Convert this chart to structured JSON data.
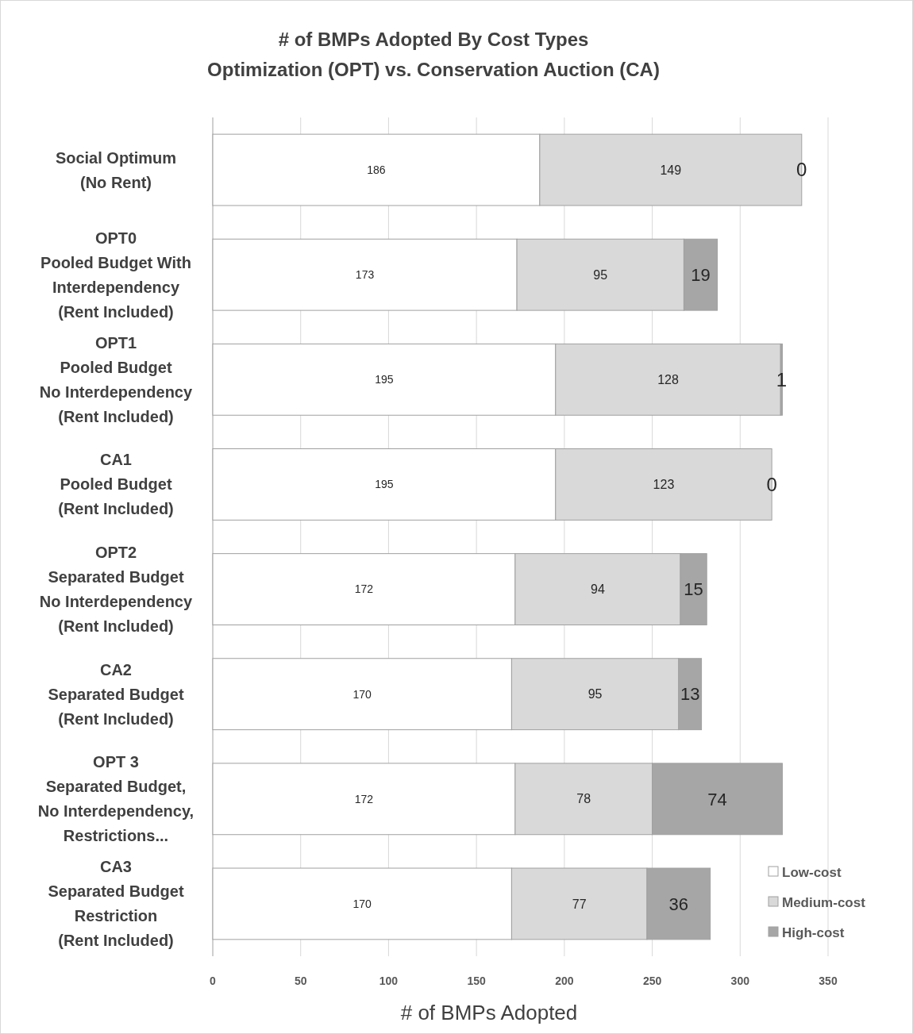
{
  "chart_data": {
    "type": "bar",
    "orientation": "horizontal",
    "stacked": true,
    "title": "# of BMPs Adopted By Cost Types\nOptimization (OPT) vs. Conservation Auction (CA)",
    "xlabel": "# of BMPs Adopted",
    "categories": [
      "Social Optimum\n(No Rent)",
      "OPT0\nPooled Budget With\nInterdependency\n(Rent Included)",
      "OPT1\nPooled Budget\nNo Interdependency\n(Rent Included)",
      "CA1\nPooled Budget\n(Rent Included)",
      "OPT2\nSeparated Budget\nNo Interdependency\n(Rent Included)",
      "CA2\nSeparated Budget\n(Rent Included)",
      "OPT 3\nSeparated Budget,\nNo Interdependency,\nRestrictions...",
      "CA3\nSeparated Budget\nRestriction\n(Rent Included)"
    ],
    "series": [
      {
        "name": "Low-cost",
        "color": "#ffffff",
        "values": [
          186,
          173,
          195,
          195,
          172,
          170,
          172,
          170
        ]
      },
      {
        "name": "Medium-cost",
        "color": "#d9d9d9",
        "values": [
          149,
          95,
          128,
          123,
          94,
          95,
          78,
          77
        ]
      },
      {
        "name": "High-cost",
        "color": "#a6a6a6",
        "values": [
          0,
          19,
          1,
          0,
          15,
          13,
          74,
          36
        ]
      }
    ],
    "xlim": [
      0,
      350
    ],
    "xticks": [
      0,
      50,
      100,
      150,
      200,
      250,
      300,
      350
    ],
    "grid": "x",
    "legend": "bottom right",
    "data_labels": true
  }
}
